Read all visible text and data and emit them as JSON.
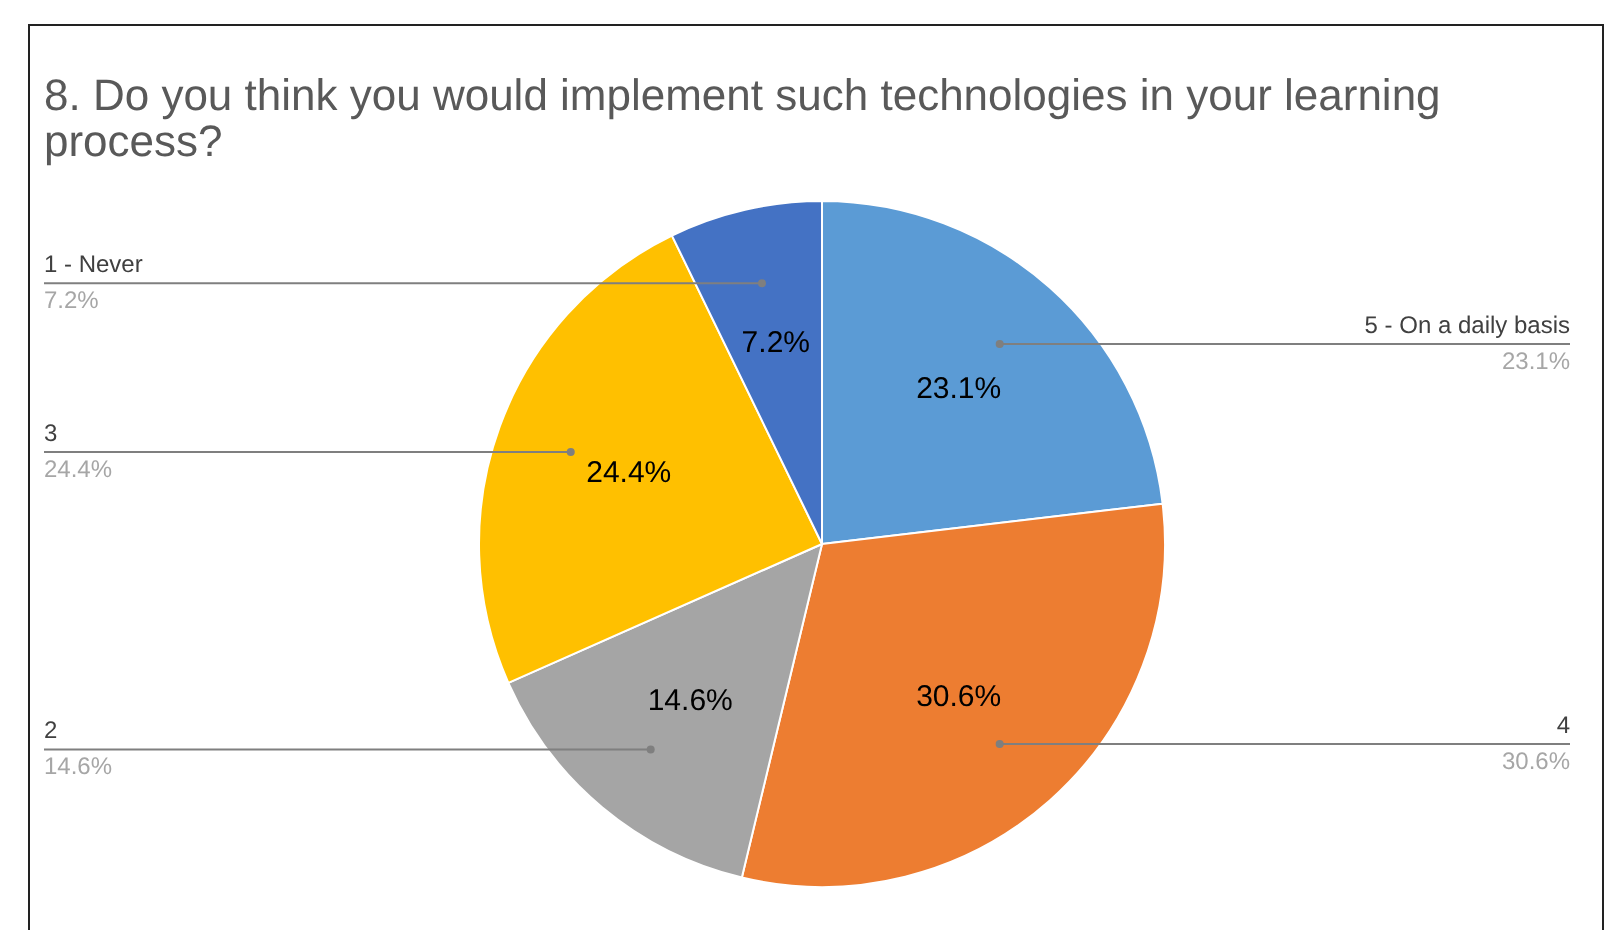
{
  "chart_data": {
    "type": "pie",
    "title": "8. Do you think you would implement such technologies in your learning process?",
    "categories": [
      "5 - On a daily basis",
      "4",
      "2",
      "3",
      "1 - Never"
    ],
    "values": [
      23.1,
      30.6,
      14.6,
      24.4,
      7.2
    ],
    "value_labels": [
      "23.1%",
      "30.6%",
      "14.6%",
      "24.4%",
      "7.2%"
    ],
    "colors": [
      "#5b9bd5",
      "#ed7d31",
      "#a5a5a5",
      "#ffc000",
      "#4472c4"
    ],
    "legend": false
  }
}
